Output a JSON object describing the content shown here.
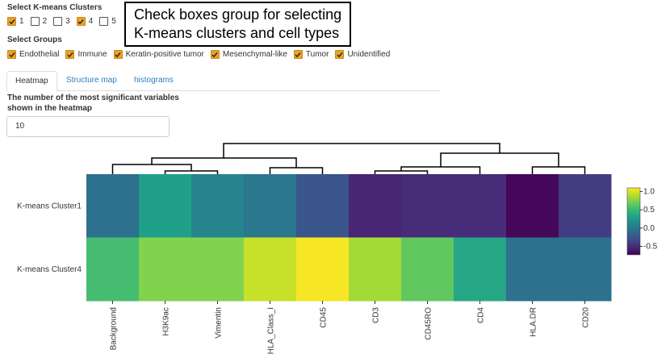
{
  "annotation": [
    "Check boxes group for selecting",
    "K-means clusters and cell types"
  ],
  "clusters": {
    "label": "Select K-means Clusters",
    "options": [
      {
        "label": "1",
        "checked": true
      },
      {
        "label": "2",
        "checked": false
      },
      {
        "label": "3",
        "checked": false
      },
      {
        "label": "4",
        "checked": true
      },
      {
        "label": "5",
        "checked": false
      }
    ]
  },
  "groups": {
    "label": "Select Groups",
    "options": [
      {
        "label": "Endothelial",
        "checked": true
      },
      {
        "label": "Immune",
        "checked": true
      },
      {
        "label": "Keratin-positive tumor",
        "checked": true
      },
      {
        "label": "Mesenchymal-like",
        "checked": true
      },
      {
        "label": "Tumor",
        "checked": true
      },
      {
        "label": "Unidentified",
        "checked": true
      }
    ]
  },
  "tabs": {
    "items": [
      "Heatmap",
      "Structure map",
      "histograms"
    ],
    "active": 0
  },
  "input": {
    "label": [
      "The number of the most significant variables",
      "shown in the heatmap"
    ],
    "value": 10
  },
  "chart_data": {
    "type": "heatmap",
    "rows": [
      "K-means Cluster1",
      "K-means Cluster4"
    ],
    "columns": [
      "Background",
      "H3K9ac",
      "Vimentin",
      "HLA_Class_I",
      "CD45",
      "CD3",
      "CD45RO",
      "CD4",
      "HLA.DR",
      "CD20"
    ],
    "values": [
      [
        -0.05,
        0.3,
        0.1,
        0.0,
        -0.25,
        -0.55,
        -0.5,
        -0.5,
        -0.7,
        -0.4
      ],
      [
        0.55,
        0.75,
        0.75,
        0.95,
        1.08,
        0.85,
        0.65,
        0.35,
        -0.05,
        -0.05
      ]
    ],
    "clim": [
      -0.73,
      1.1
    ],
    "cticks": [
      {
        "value": 1,
        "label": "1.0"
      },
      0.5,
      {
        "value": 0,
        "label": "0.0"
      },
      -0.5
    ]
  }
}
